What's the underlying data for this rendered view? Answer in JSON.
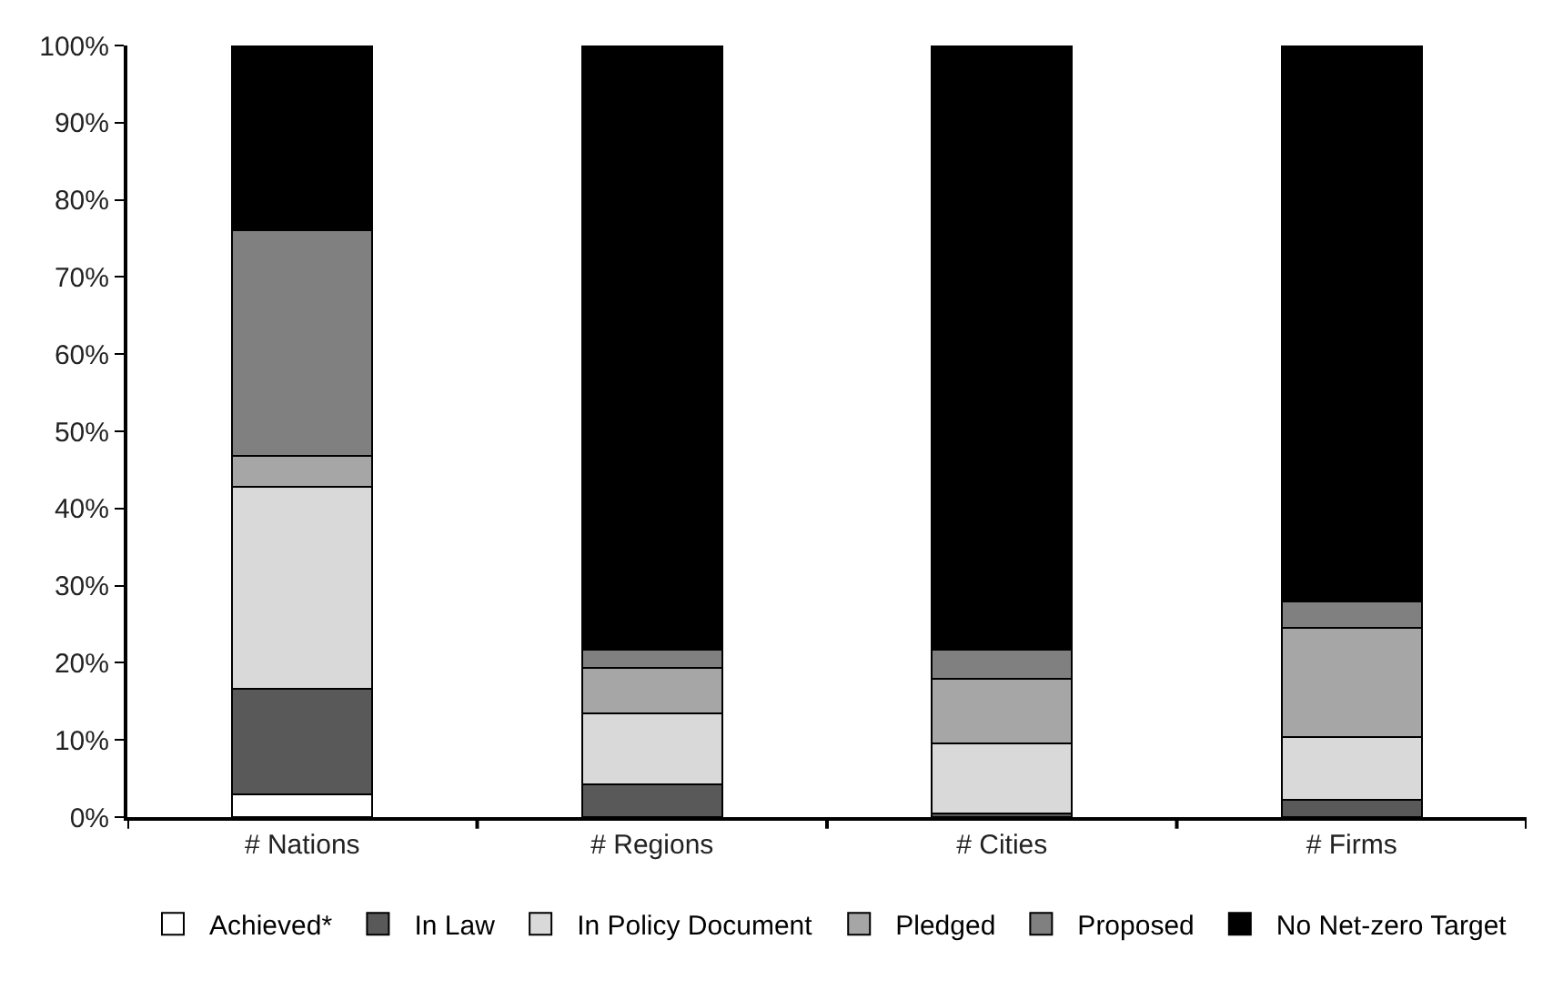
{
  "chart_data": {
    "type": "bar",
    "stacked": true,
    "categories": [
      "# Nations",
      "# Regions",
      "# Cities",
      "# Firms"
    ],
    "series": [
      {
        "name": "Achieved*",
        "color": "#ffffff",
        "values": [
          3.0,
          0,
          0,
          0
        ]
      },
      {
        "name": "In Law",
        "color": "#595959",
        "values": [
          13.6,
          4.2,
          0.5,
          2.2
        ]
      },
      {
        "name": "In Policy Document",
        "color": "#d9d9d9",
        "values": [
          26.2,
          9.2,
          9.1,
          8.2
        ]
      },
      {
        "name": "Pledged",
        "color": "#a6a6a6",
        "values": [
          4.0,
          5.9,
          8.3,
          14.1
        ]
      },
      {
        "name": "Proposed",
        "color": "#808080",
        "values": [
          29.3,
          2.4,
          3.8,
          3.4
        ]
      },
      {
        "name": "No Net-zero Target",
        "color": "#000000",
        "values": [
          23.9,
          78.3,
          78.3,
          72.1
        ]
      }
    ],
    "ylim": [
      0,
      100
    ],
    "yticks": [
      {
        "value": 0,
        "label": "0%"
      },
      {
        "value": 10,
        "label": "10%"
      },
      {
        "value": 20,
        "label": "20%"
      },
      {
        "value": 30,
        "label": "30%"
      },
      {
        "value": 40,
        "label": "40%"
      },
      {
        "value": 50,
        "label": "50%"
      },
      {
        "value": 60,
        "label": "60%"
      },
      {
        "value": 70,
        "label": "70%"
      },
      {
        "value": 80,
        "label": "80%"
      },
      {
        "value": 90,
        "label": "90%"
      },
      {
        "value": 100,
        "label": "100%"
      }
    ],
    "grid": false,
    "legend": "bottom"
  }
}
